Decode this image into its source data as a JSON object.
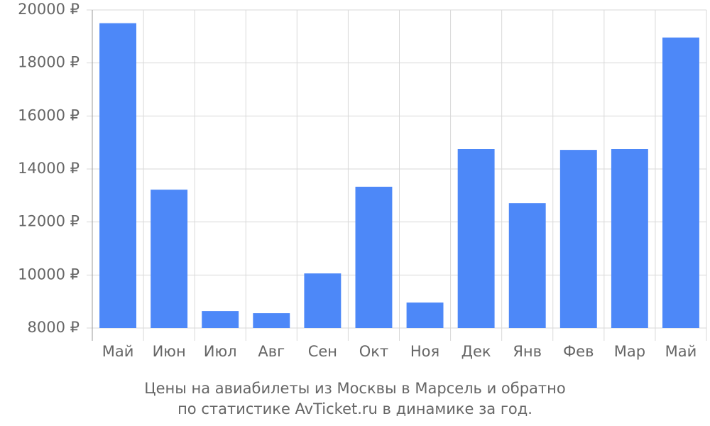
{
  "chart_data": {
    "type": "bar",
    "title": [
      "Цены на авиабилеты из Москвы в Марсель и обратно",
      "по статистике AvTicket.ru в динамике за год."
    ],
    "categories": [
      "Май",
      "Июн",
      "Июл",
      "Авг",
      "Сен",
      "Окт",
      "Ноя",
      "Дек",
      "Янв",
      "Фев",
      "Мар",
      "Май"
    ],
    "values": [
      19500,
      13220,
      8640,
      8560,
      10060,
      13330,
      8960,
      14750,
      12710,
      14720,
      14750,
      18960
    ],
    "color": "#4d88f8",
    "ylim": [
      8000,
      20000
    ],
    "yticks": [
      {
        "value": 8000,
        "label": "8000 ₽"
      },
      {
        "value": 10000,
        "label": "10000 ₽"
      },
      {
        "value": 12000,
        "label": "12000 ₽"
      },
      {
        "value": 14000,
        "label": "14000 ₽"
      },
      {
        "value": 16000,
        "label": "16000 ₽"
      },
      {
        "value": 18000,
        "label": "18000 ₽"
      },
      {
        "value": 20000,
        "label": "20000 ₽"
      }
    ],
    "grid": true
  }
}
